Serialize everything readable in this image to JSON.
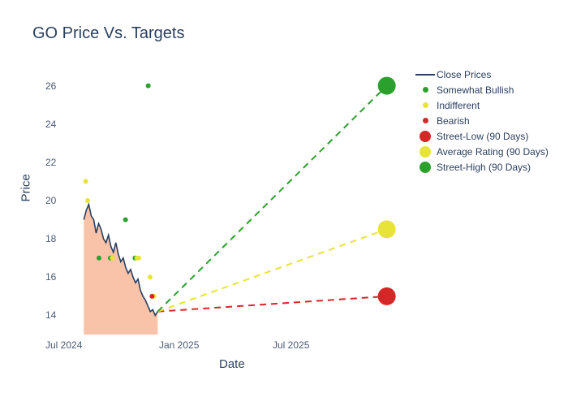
{
  "title": "GO Price Vs. Targets",
  "x_axis_label": "Date",
  "y_axis_label": "Price",
  "background_color": "#ffffff",
  "title_color": "#2a3f5f",
  "title_fontsize": 20,
  "axis_label_fontsize": 15,
  "tick_fontsize": 12,
  "y_ticks": [
    14,
    16,
    18,
    20,
    22,
    24,
    26
  ],
  "x_ticks": [
    "Jul 2024",
    "Jan 2025",
    "Jul 2025"
  ],
  "x_range_months": 18,
  "y_lim": [
    13,
    27
  ],
  "close_area_fill": "#f7b89a",
  "close_line_color": "#2a3f5f",
  "close_prices": [
    19.0,
    19.5,
    19.8,
    19.2,
    19.0,
    18.3,
    18.8,
    18.5,
    18.0,
    17.8,
    18.2,
    17.6,
    17.3,
    17.8,
    17.2,
    16.8,
    17.0,
    16.5,
    16.2,
    16.4,
    16.0,
    15.7,
    15.9,
    15.3,
    15.0,
    14.8,
    14.5,
    14.2,
    14.3,
    14.0,
    14.2
  ],
  "scatter_points": {
    "somewhat_bullish": {
      "color": "#2ca02c",
      "points": [
        {
          "x": 1.8,
          "y": 17.0
        },
        {
          "x": 2.4,
          "y": 17.0
        },
        {
          "x": 3.2,
          "y": 19.0
        },
        {
          "x": 3.7,
          "y": 17.0
        },
        {
          "x": 4.4,
          "y": 26.0
        }
      ]
    },
    "indifferent": {
      "color": "#e8e337",
      "points": [
        {
          "x": 1.1,
          "y": 21.0
        },
        {
          "x": 1.2,
          "y": 20.0
        },
        {
          "x": 2.5,
          "y": 17.0
        },
        {
          "x": 3.8,
          "y": 17.0
        },
        {
          "x": 3.9,
          "y": 17.0
        },
        {
          "x": 4.5,
          "y": 16.0
        },
        {
          "x": 4.7,
          "y": 15.0
        }
      ]
    },
    "bearish": {
      "color": "#d62728",
      "points": [
        {
          "x": 4.6,
          "y": 15.0
        }
      ]
    }
  },
  "projections": {
    "start_x": 4.9,
    "start_y": 14.2,
    "end_x": 17.0,
    "street_low": {
      "y": 15.0,
      "color": "#d62728"
    },
    "average": {
      "y": 18.5,
      "color": "#e8e337"
    },
    "street_high": {
      "y": 26.0,
      "color": "#2ca02c"
    }
  },
  "target_marker_radius": 11,
  "small_marker_radius": 3,
  "dash_pattern": "8,6",
  "dash_width": 2,
  "legend": [
    {
      "type": "line",
      "label": "Close Prices",
      "color": "#2a3f5f"
    },
    {
      "type": "small-dot",
      "label": "Somewhat Bullish",
      "color": "#2ca02c"
    },
    {
      "type": "small-dot",
      "label": "Indifferent",
      "color": "#e8e337"
    },
    {
      "type": "small-dot",
      "label": "Bearish",
      "color": "#d62728"
    },
    {
      "type": "big-dot",
      "label": "Street-Low (90 Days)",
      "color": "#d62728"
    },
    {
      "type": "big-dot",
      "label": "Average Rating (90 Days)",
      "color": "#e8e337"
    },
    {
      "type": "big-dot",
      "label": "Street-High (90 Days)",
      "color": "#2ca02c"
    }
  ]
}
